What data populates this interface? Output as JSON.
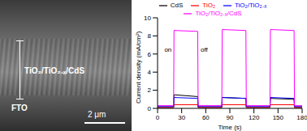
{
  "image_panel": {
    "film_label": "TiO₂/TiO₂₋ₓ/CdS",
    "substrate_label": "FTO",
    "scale_bar": "2 μm"
  },
  "chart_data": {
    "type": "line",
    "x_label": "Time (s)",
    "y_label": "Current density (mA/cm²)",
    "x": [
      0,
      20,
      20.5,
      50,
      50.5,
      80,
      80.5,
      110,
      110.5,
      140,
      140.5,
      170,
      170.5,
      180
    ],
    "xlim": [
      0,
      180
    ],
    "xticks": [
      0,
      30,
      60,
      90,
      120,
      150,
      180
    ],
    "ylim": [
      0,
      10
    ],
    "yticks": [
      0,
      2,
      4,
      6,
      8,
      10
    ],
    "grid": false,
    "legend": "top",
    "series": [
      {
        "name": "CdS",
        "color": "#000000",
        "values": [
          0.1,
          0.1,
          1.5,
          1.3,
          0.1,
          0.1,
          1.2,
          1.1,
          0.1,
          0.1,
          1.1,
          1.0,
          0.1,
          0.1
        ]
      },
      {
        "name": "TiO₂",
        "color": "#ff0000",
        "values": [
          0.1,
          0.1,
          0.4,
          0.4,
          0.1,
          0.1,
          0.4,
          0.4,
          0.1,
          0.1,
          0.4,
          0.4,
          0.1,
          0.1
        ]
      },
      {
        "name": "TiO₂/TiO₂₋ₓ",
        "color": "#0000ff",
        "values": [
          0.2,
          0.2,
          1.2,
          1.1,
          0.2,
          0.2,
          1.2,
          1.1,
          0.2,
          0.2,
          1.2,
          1.1,
          0.2,
          0.2
        ]
      },
      {
        "name": "TiO₂/TiO₂₋ₓ/CdS",
        "color": "#ff00ff",
        "values": [
          0.3,
          0.3,
          8.6,
          8.5,
          0.3,
          0.3,
          8.7,
          8.6,
          0.3,
          0.3,
          8.7,
          8.6,
          0.3,
          0.3
        ]
      }
    ],
    "annotations": [
      {
        "text": "on",
        "x": 13,
        "y": 6.5
      },
      {
        "text": "off",
        "x": 58,
        "y": 6.5
      }
    ]
  }
}
